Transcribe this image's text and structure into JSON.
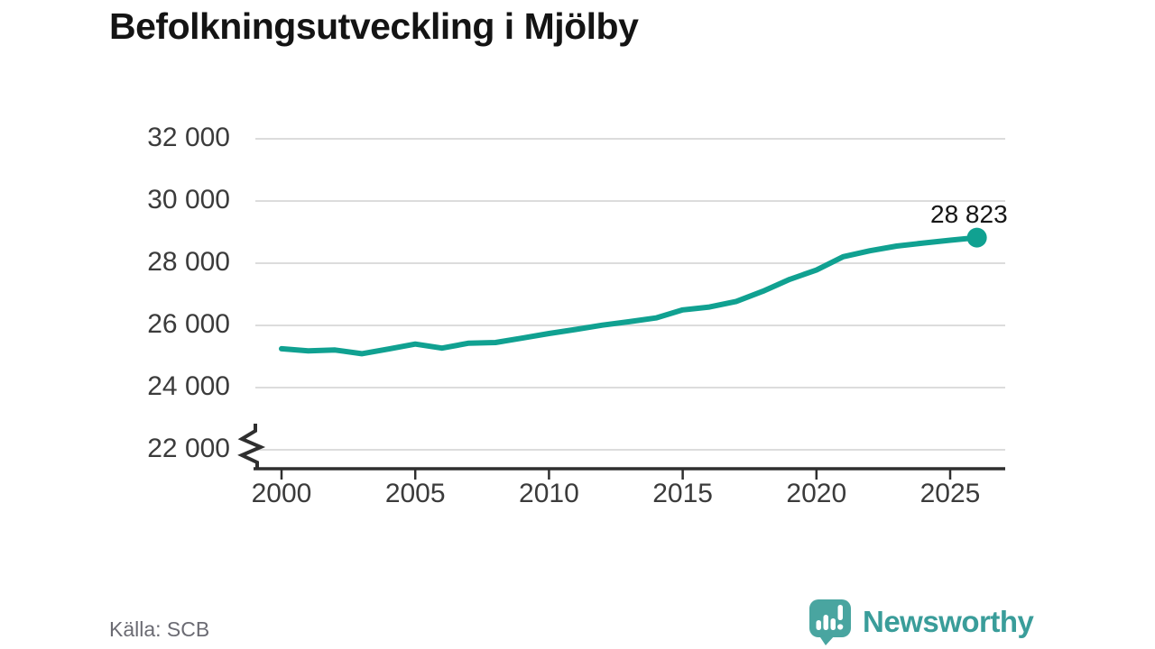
{
  "chart_data": {
    "type": "line",
    "title": "Befolkningsutveckling i Mjölby",
    "source": "Källa: SCB",
    "x": [
      2000,
      2001,
      2002,
      2003,
      2004,
      2005,
      2006,
      2007,
      2008,
      2009,
      2010,
      2011,
      2012,
      2013,
      2014,
      2015,
      2016,
      2017,
      2018,
      2019,
      2020,
      2021,
      2022,
      2023,
      2024,
      2025,
      2026
    ],
    "series": [
      {
        "values": [
          25250,
          25180,
          25210,
          25090,
          25240,
          25400,
          25270,
          25430,
          25450,
          25590,
          25740,
          25870,
          26010,
          26120,
          26240,
          26500,
          26590,
          26770,
          27100,
          27480,
          27780,
          28210,
          28400,
          28550,
          28650,
          28740,
          28823
        ]
      }
    ],
    "last_point_value": 28823,
    "last_point_label": "28 823",
    "xticks": {
      "values": [
        2000,
        2005,
        2010,
        2015,
        2020,
        2025
      ],
      "labels": [
        "2000",
        "2005",
        "2010",
        "2015",
        "2020",
        "2025"
      ]
    },
    "yticks": {
      "values": [
        22000,
        24000,
        26000,
        28000,
        30000,
        32000
      ],
      "labels": [
        "22 000",
        "24 000",
        "26 000",
        "28 000",
        "30 000",
        "32 000"
      ]
    },
    "ylim": [
      22000,
      32000
    ],
    "axis_break": true,
    "grid": "horizontal",
    "legend": "none"
  },
  "colors": {
    "line": "#10a191",
    "grid": "#dcdcdc",
    "axis": "#2f2f2f",
    "brand_teal": "#3a9d9a",
    "logo_bubble": "#49a5a0"
  },
  "branding": {
    "name": "Newsworthy"
  }
}
